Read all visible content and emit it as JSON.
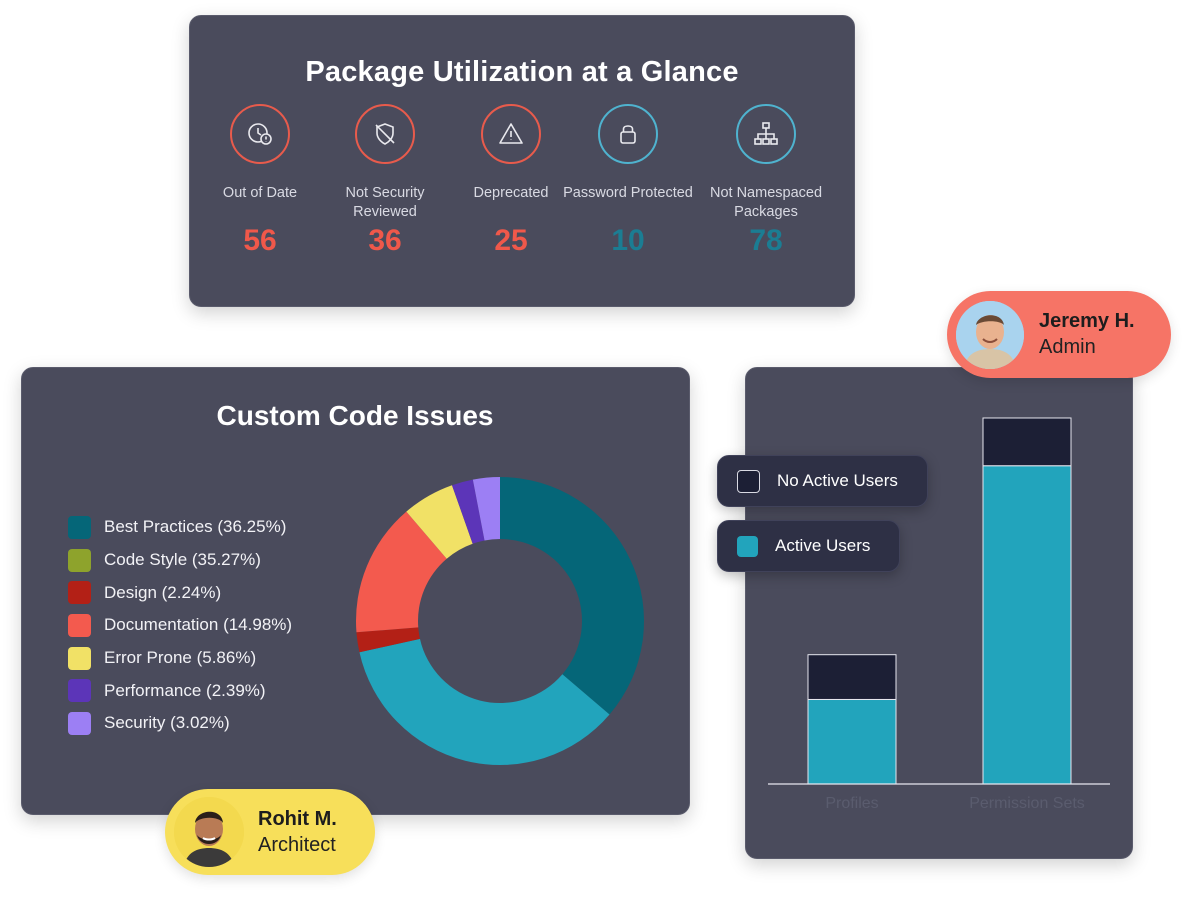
{
  "package_card": {
    "title": "Package Utilization at a Glance",
    "metrics": [
      {
        "label": "Out of Date",
        "value": "56",
        "icon": "clock-alert-icon",
        "tone": "red"
      },
      {
        "label": "Not Security Reviewed",
        "value": "36",
        "icon": "shield-off-icon",
        "tone": "red"
      },
      {
        "label": "Deprecated",
        "value": "25",
        "icon": "warning-triangle-icon",
        "tone": "red"
      },
      {
        "label": "Password Protected",
        "value": "10",
        "icon": "lock-icon",
        "tone": "blue"
      },
      {
        "label": "Not Namespaced Packages",
        "value": "78",
        "icon": "hierarchy-icon",
        "tone": "blue"
      }
    ],
    "colors": {
      "red": "#f0584a",
      "blue": "#1b7d93"
    }
  },
  "code_card": {
    "title": "Custom Code Issues"
  },
  "chart_data": [
    {
      "type": "pie",
      "style": "donut",
      "title": "Custom Code Issues",
      "categories": [
        "Best Practices (36.25%)",
        "Code Style (35.27%)",
        "Design (2.24%)",
        "Documentation (14.98%)",
        "Error Prone (5.86%)",
        "Performance (2.39%)",
        "Security (3.02%)"
      ],
      "values": [
        36.25,
        35.27,
        2.24,
        14.98,
        5.86,
        2.39,
        3.02
      ],
      "colors": [
        "#056678",
        "#22a4bc",
        "#b32016",
        "#f35a4e",
        "#f1e166",
        "#5c35b8",
        "#9c7ff4"
      ],
      "legend_colors": [
        "#056678",
        "#8ea32c",
        "#b32016",
        "#f35a4e",
        "#f1e166",
        "#5c35b8",
        "#9c7ff4"
      ],
      "legend": "left"
    },
    {
      "type": "bar",
      "stacked": true,
      "categories": [
        "Profiles",
        "Permission Sets"
      ],
      "series": [
        {
          "name": "Active Users",
          "values": [
            85,
            320
          ],
          "color": "#22a4bc"
        },
        {
          "name": "No Active Users",
          "values": [
            45,
            48
          ],
          "color": "#1c1f35"
        }
      ],
      "ylim": [
        0,
        370
      ]
    }
  ],
  "users": {
    "jeremy": {
      "name": "Jeremy H.",
      "role": "Admin"
    },
    "rohit": {
      "name": "Rohit M.",
      "role": "Architect"
    }
  }
}
